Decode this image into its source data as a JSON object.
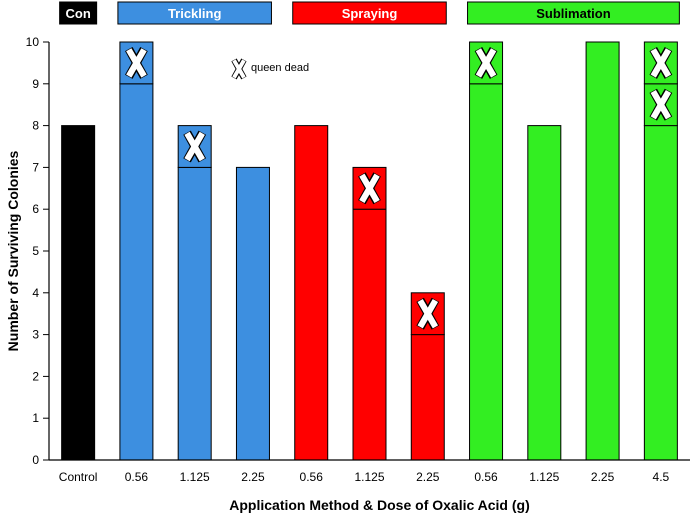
{
  "chart_data": {
    "type": "bar",
    "xlabel": "Application Method & Dose of Oxalic Acid (g)",
    "ylabel": "Number of Surviving Colonies",
    "ylim": [
      0,
      10
    ],
    "yticks": [
      0,
      1,
      2,
      3,
      4,
      5,
      6,
      7,
      8,
      9,
      10
    ],
    "categories": [
      "Control",
      "0.56",
      "1.125",
      "2.25",
      "0.56",
      "1.125",
      "2.25",
      "0.56",
      "1.125",
      "2.25",
      "4.5"
    ],
    "groups": [
      {
        "name": "Con",
        "color": "#000000",
        "text_color": "#ffffff",
        "bars": [
          0
        ]
      },
      {
        "name": "Trickling",
        "color": "#3d8fe0",
        "text_color": "#ffffff",
        "bars": [
          1,
          2,
          3
        ]
      },
      {
        "name": "Spraying",
        "color": "#ff0000",
        "text_color": "#ffffff",
        "bars": [
          4,
          5,
          6
        ]
      },
      {
        "name": "Sublimation",
        "color": "#33ee22",
        "text_color": "#000000",
        "bars": [
          7,
          8,
          9,
          10
        ]
      }
    ],
    "series": [
      {
        "name": "Surviving colonies",
        "values": [
          8,
          9,
          7,
          7,
          8,
          6,
          3,
          9,
          8,
          10,
          8
        ]
      },
      {
        "name": "Queen dead",
        "values": [
          0,
          1,
          1,
          0,
          0,
          1,
          1,
          1,
          0,
          0,
          2
        ]
      }
    ],
    "annotation": {
      "symbol": "X",
      "label": "queen dead"
    }
  }
}
